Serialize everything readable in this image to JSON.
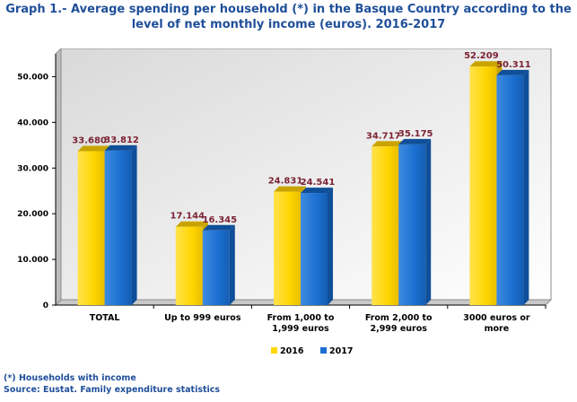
{
  "title_line1": "Graph 1.- Average spending per household (*) in the Basque Country according to the",
  "title_line2": "level of net monthly income (euros). 2016-2017",
  "footnote": "(*) Households with income",
  "source": "Source: Eustat. Family expenditure statistics",
  "colors": {
    "series_2016": "#ffd600",
    "series_2016_dark": "#c9a400",
    "series_2017": "#1c6fd1",
    "series_2017_dark": "#0f4f99",
    "data_label": "#7b2334",
    "title": "#1f4f9a"
  },
  "chart_data": {
    "type": "bar",
    "categories": [
      "TOTAL",
      "Up to 999 euros",
      "From 1,000 to 1,999 euros",
      "From 2,000 to 2,999 euros",
      "3000 euros or more"
    ],
    "category_lines": [
      [
        "TOTAL"
      ],
      [
        "Up to 999 euros"
      ],
      [
        "From 1,000 to",
        "1,999 euros"
      ],
      [
        "From 2,000 to",
        "2,999 euros"
      ],
      [
        "3000 euros or",
        "more"
      ]
    ],
    "series": [
      {
        "name": "2016",
        "values": [
          33680,
          17144,
          24831,
          34717,
          52209
        ],
        "labels": [
          "33.680",
          "17.144",
          "24.831",
          "34.717",
          "52.209"
        ]
      },
      {
        "name": "2017",
        "values": [
          33812,
          16345,
          24541,
          35175,
          50311
        ],
        "labels": [
          "33.812",
          "16.345",
          "24.541",
          "35.175",
          "50.311"
        ]
      }
    ],
    "yticks": [
      0,
      10000,
      20000,
      30000,
      40000,
      50000
    ],
    "ytick_labels": [
      "0",
      "10.000",
      "20.000",
      "30.000",
      "40.000",
      "50.000"
    ],
    "ylim": [
      0,
      55000
    ],
    "grid": false,
    "legend_position": "bottom"
  }
}
